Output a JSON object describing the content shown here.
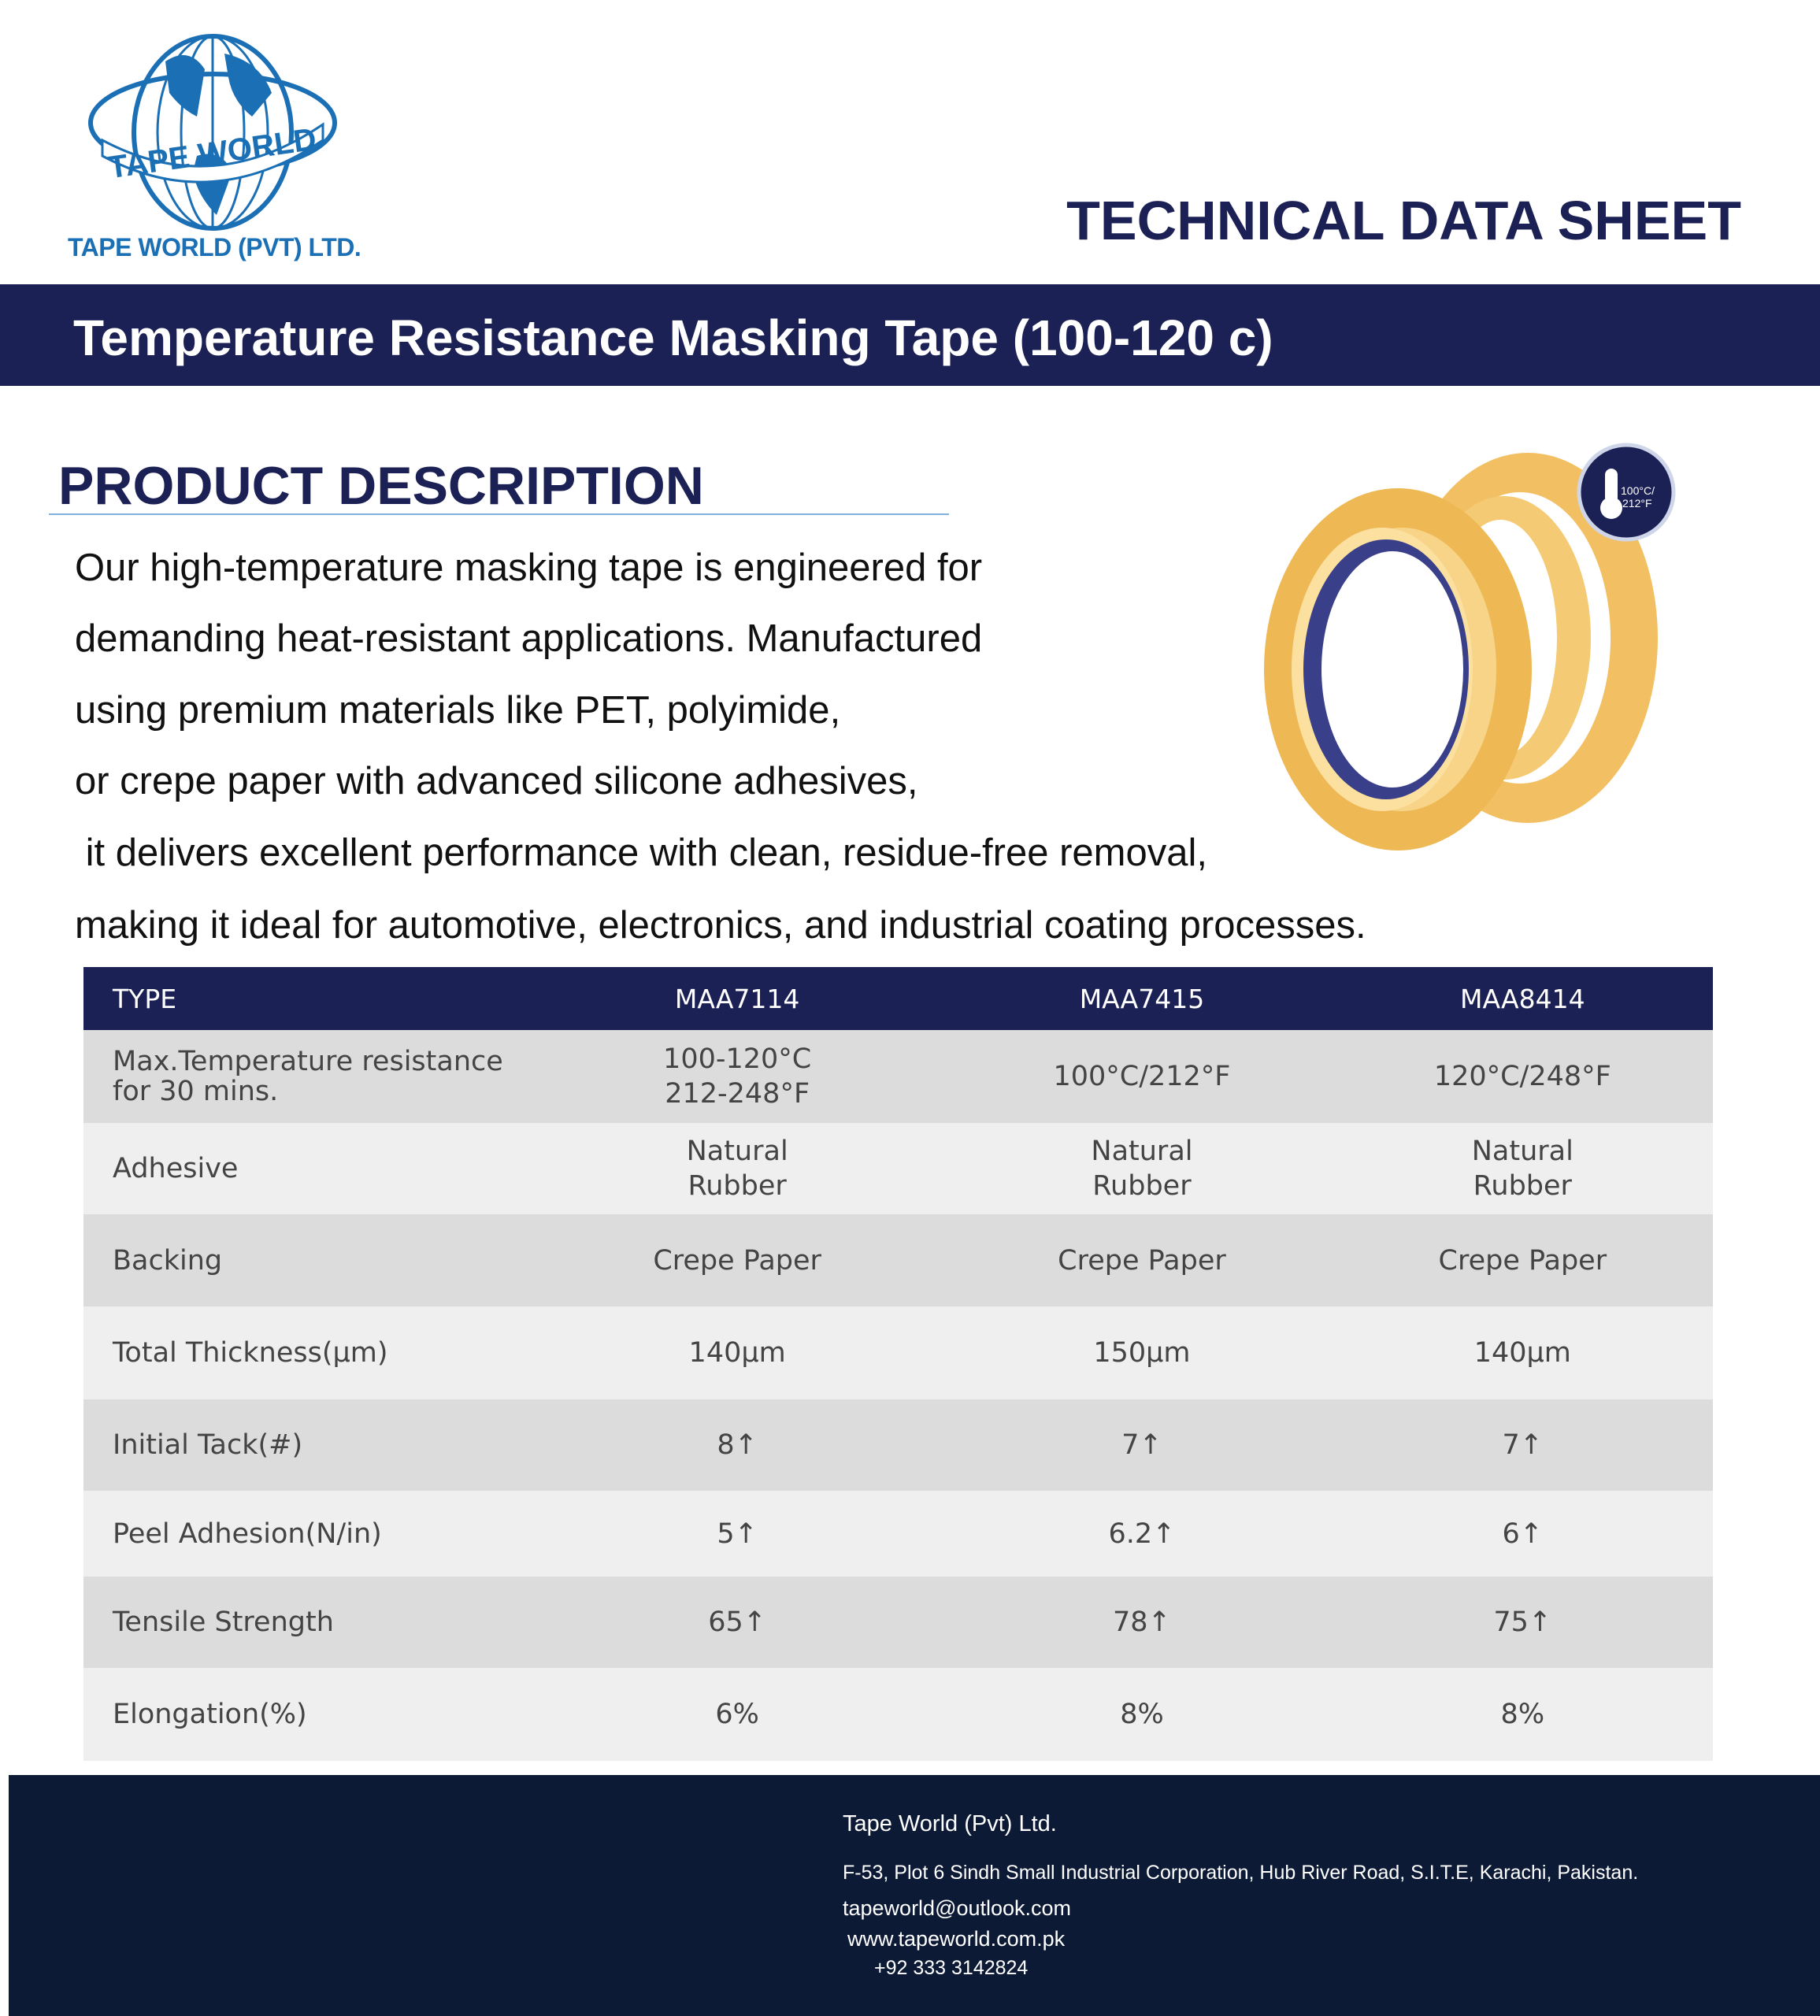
{
  "header": {
    "logo_text": "TAPE WORLD",
    "company_name": "TAPE WORLD (PVT) LTD.",
    "doc_type": "TECHNICAL DATA SHEET",
    "product_title": "Temperature Resistance Masking Tape (100-120 c)"
  },
  "description": {
    "heading": "PRODUCT DESCRIPTION",
    "lines": [
      "Our high-temperature masking tape is engineered for",
      "demanding heat-resistant applications. Manufactured",
      "using premium materials like PET, polyimide,",
      "or crepe paper with advanced silicone adhesives,",
      " it delivers excellent performance with clean, residue-free removal,",
      "making it ideal for automotive, electronics, and industrial coating processes."
    ],
    "badge_text": [
      "100°C/",
      "212°F"
    ]
  },
  "table": {
    "headers": [
      "TYPE",
      "MAA7114",
      "MAA7415",
      "MAA8414"
    ],
    "rows": [
      {
        "label": "Max.Temperature resistance for 30 mins.",
        "values": [
          "100-120°C 212-248°F",
          "100°C/212°F",
          "120°C/248°F"
        ]
      },
      {
        "label": "Adhesive",
        "values": [
          "Natural Rubber",
          "Natural Rubber",
          "Natural Rubber"
        ]
      },
      {
        "label": "Backing",
        "values": [
          "Crepe Paper",
          "Crepe Paper",
          "Crepe Paper"
        ]
      },
      {
        "label": "Total Thickness(μm)",
        "values": [
          "140μm",
          "150μm",
          "140μm"
        ]
      },
      {
        "label": "Initial Tack(#)",
        "values": [
          "8↑",
          "7↑",
          "7↑"
        ]
      },
      {
        "label": "Peel Adhesion(N/in)",
        "values": [
          "5↑",
          "6.2↑",
          "6↑"
        ]
      },
      {
        "label": "Tensile Strength",
        "values": [
          "65↑",
          "78↑",
          "75↑"
        ]
      },
      {
        "label": "Elongation(%)",
        "values": [
          "6%",
          "8%",
          "8%"
        ]
      }
    ]
  },
  "footer": {
    "company": "Tape World (Pvt) Ltd.",
    "address": "F-53, Plot 6 Sindh Small Industrial Corporation, Hub River Road, S.I.T.E, Karachi, Pakistan.",
    "email": "tapeworld@outlook.com",
    "website": "www.tapeworld.com.pk",
    "phone": "+92 333 3142824"
  },
  "colors": {
    "navy": "#1c2155",
    "footer": "#0c1a36",
    "logo_blue": "#1a6fb5"
  }
}
